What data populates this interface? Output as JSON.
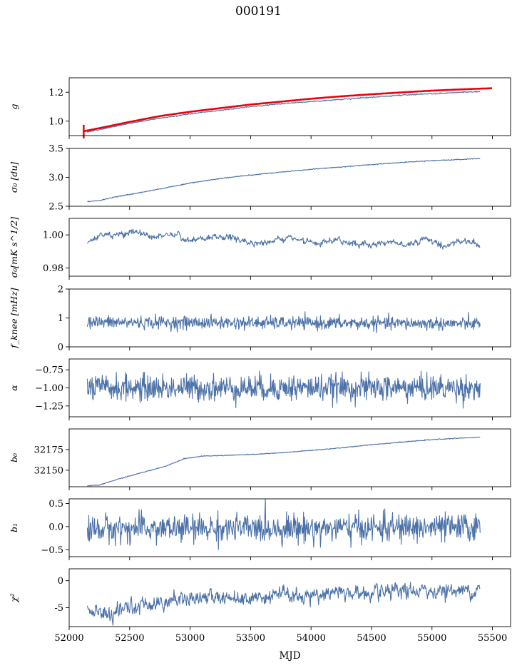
{
  "figure": {
    "title": "000191",
    "xlabel": "MJD",
    "xlim": [
      52000,
      55650
    ],
    "xticks": [
      52000,
      52500,
      53000,
      53500,
      54000,
      54500,
      55000,
      55500
    ],
    "colors": {
      "series": "#4c72a8",
      "fit": "#e8000b",
      "axis": "#000000"
    }
  },
  "chart_data": [
    {
      "type": "line",
      "id": "g",
      "ylabel": "g",
      "ylim": [
        0.9,
        1.3
      ],
      "yticks": [
        1.0,
        1.2
      ],
      "series": [
        {
          "style": "data",
          "x": [
            52150,
            52300,
            52500,
            52750,
            53000,
            53250,
            53500,
            53750,
            54000,
            54250,
            54500,
            54750,
            55000,
            55200,
            55400
          ],
          "y": [
            0.925,
            0.95,
            0.985,
            1.02,
            1.05,
            1.075,
            1.1,
            1.12,
            1.135,
            1.15,
            1.165,
            1.18,
            1.19,
            1.198,
            1.205
          ]
        },
        {
          "style": "fit",
          "x": [
            52120,
            52300,
            52500,
            52750,
            53000,
            53250,
            53500,
            53750,
            54000,
            54250,
            54500,
            54750,
            55000,
            55250,
            55500
          ],
          "y": [
            0.93,
            0.96,
            0.995,
            1.035,
            1.065,
            1.09,
            1.115,
            1.135,
            1.155,
            1.172,
            1.186,
            1.199,
            1.211,
            1.22,
            1.228
          ]
        }
      ]
    },
    {
      "type": "line",
      "id": "sigma0_du",
      "ylabel": "σ₀ [du]",
      "ylim": [
        2.5,
        3.5
      ],
      "yticks": [
        2.5,
        3.0,
        3.5
      ],
      "series": [
        {
          "style": "data",
          "x": [
            52150,
            52250,
            52400,
            52600,
            52800,
            53000,
            53250,
            53500,
            53750,
            54000,
            54250,
            54500,
            54750,
            55000,
            55250,
            55400
          ],
          "y": [
            2.58,
            2.6,
            2.67,
            2.74,
            2.82,
            2.9,
            2.98,
            3.04,
            3.09,
            3.14,
            3.18,
            3.22,
            3.26,
            3.29,
            3.31,
            3.33
          ]
        }
      ]
    },
    {
      "type": "line",
      "id": "sigma0_mk",
      "ylabel": "σ₀[mK s^1/2]",
      "ylim": [
        0.975,
        1.01
      ],
      "yticks": [
        0.98,
        1.0
      ],
      "series": [
        {
          "style": "data",
          "x": [
            52150,
            52250,
            52400,
            52550,
            52700,
            52850,
            53000,
            53150,
            53300,
            53450,
            53600,
            53750,
            53900,
            54050,
            54200,
            54350,
            54500,
            54650,
            54800,
            54950,
            55100,
            55250,
            55400
          ],
          "y": [
            0.996,
            0.999,
            1.0,
            1.002,
            0.998,
            1.001,
            0.996,
            0.998,
            0.999,
            0.996,
            0.995,
            0.998,
            0.997,
            0.994,
            0.997,
            0.995,
            0.994,
            0.996,
            0.994,
            0.998,
            0.993,
            0.997,
            0.994
          ]
        }
      ]
    },
    {
      "type": "line",
      "id": "fknee",
      "ylabel": "f_knee [mHz]",
      "ylim": [
        0,
        2
      ],
      "yticks": [
        0,
        1,
        2
      ],
      "series": [
        {
          "style": "data",
          "x": [
            52150,
            55400
          ],
          "y": [
            0.85,
            0.8
          ]
        }
      ]
    },
    {
      "type": "line",
      "id": "alpha",
      "ylabel": "α",
      "ylim": [
        -1.4,
        -0.6
      ],
      "yticks": [
        -1.25,
        -1.0,
        -0.75
      ],
      "series": [
        {
          "style": "data",
          "x": [
            52150,
            55400
          ],
          "y": [
            -1.0,
            -1.0
          ]
        }
      ]
    },
    {
      "type": "line",
      "id": "b0",
      "ylabel": "b₀",
      "ylim": [
        32130,
        32200
      ],
      "yticks": [
        32150,
        32175
      ],
      "series": [
        {
          "style": "data",
          "x": [
            52150,
            52250,
            52400,
            52600,
            52800,
            52950,
            53100,
            53300,
            53500,
            53750,
            54000,
            54250,
            54500,
            54750,
            55000,
            55250,
            55400
          ],
          "y": [
            32131,
            32132,
            32139,
            32147,
            32155,
            32164,
            32167,
            32168,
            32169,
            32171,
            32174,
            32177,
            32181,
            32184,
            32187,
            32189,
            32190
          ]
        }
      ]
    },
    {
      "type": "line",
      "id": "b1",
      "ylabel": "b₁",
      "ylim": [
        -0.65,
        0.6
      ],
      "yticks": [
        -0.5,
        0.0,
        0.5
      ],
      "series": [
        {
          "style": "data",
          "x": [
            52150,
            55400
          ],
          "y": [
            -0.05,
            -0.02
          ]
        }
      ]
    },
    {
      "type": "line",
      "id": "chi2",
      "ylabel": "χ²",
      "ylim": [
        -8.5,
        2.2
      ],
      "yticks": [
        -5,
        0
      ],
      "series": [
        {
          "style": "data",
          "x": [
            52150,
            52250,
            52350,
            52500,
            52700,
            52900,
            53100,
            53300,
            53500,
            53700,
            53900,
            54100,
            54300,
            54500,
            54700,
            54900,
            55100,
            55300,
            55400
          ],
          "y": [
            -5.0,
            -6.0,
            -6.5,
            -5.0,
            -4.0,
            -3.5,
            -3.0,
            -3.0,
            -3.2,
            -2.5,
            -2.8,
            -2.5,
            -2.2,
            -2.6,
            -2.2,
            -2.0,
            -1.8,
            -1.8,
            -1.6
          ]
        }
      ]
    }
  ]
}
